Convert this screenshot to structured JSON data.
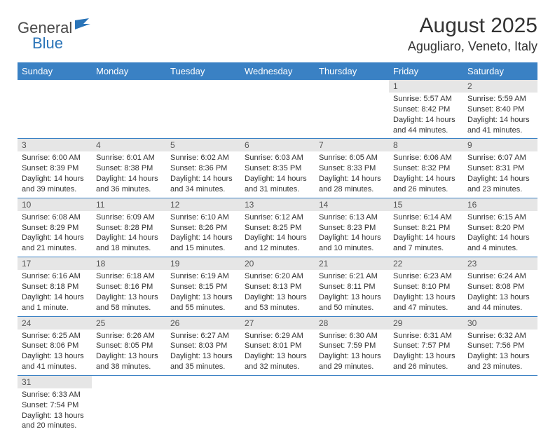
{
  "brand": {
    "part1": "General",
    "part2": "Blue"
  },
  "title": "August 2025",
  "location": "Agugliaro, Veneto, Italy",
  "colors": {
    "header_bg": "#3a81c4",
    "header_fg": "#ffffff",
    "daynum_bg": "#e6e6e6",
    "row_border": "#3a81c4",
    "brand_gray": "#4a4a4a",
    "brand_blue": "#2a74b8"
  },
  "weekdays": [
    "Sunday",
    "Monday",
    "Tuesday",
    "Wednesday",
    "Thursday",
    "Friday",
    "Saturday"
  ],
  "weeks": [
    [
      null,
      null,
      null,
      null,
      null,
      {
        "n": "1",
        "sunrise": "Sunrise: 5:57 AM",
        "sunset": "Sunset: 8:42 PM",
        "daylight": "Daylight: 14 hours and 44 minutes."
      },
      {
        "n": "2",
        "sunrise": "Sunrise: 5:59 AM",
        "sunset": "Sunset: 8:40 PM",
        "daylight": "Daylight: 14 hours and 41 minutes."
      }
    ],
    [
      {
        "n": "3",
        "sunrise": "Sunrise: 6:00 AM",
        "sunset": "Sunset: 8:39 PM",
        "daylight": "Daylight: 14 hours and 39 minutes."
      },
      {
        "n": "4",
        "sunrise": "Sunrise: 6:01 AM",
        "sunset": "Sunset: 8:38 PM",
        "daylight": "Daylight: 14 hours and 36 minutes."
      },
      {
        "n": "5",
        "sunrise": "Sunrise: 6:02 AM",
        "sunset": "Sunset: 8:36 PM",
        "daylight": "Daylight: 14 hours and 34 minutes."
      },
      {
        "n": "6",
        "sunrise": "Sunrise: 6:03 AM",
        "sunset": "Sunset: 8:35 PM",
        "daylight": "Daylight: 14 hours and 31 minutes."
      },
      {
        "n": "7",
        "sunrise": "Sunrise: 6:05 AM",
        "sunset": "Sunset: 8:33 PM",
        "daylight": "Daylight: 14 hours and 28 minutes."
      },
      {
        "n": "8",
        "sunrise": "Sunrise: 6:06 AM",
        "sunset": "Sunset: 8:32 PM",
        "daylight": "Daylight: 14 hours and 26 minutes."
      },
      {
        "n": "9",
        "sunrise": "Sunrise: 6:07 AM",
        "sunset": "Sunset: 8:31 PM",
        "daylight": "Daylight: 14 hours and 23 minutes."
      }
    ],
    [
      {
        "n": "10",
        "sunrise": "Sunrise: 6:08 AM",
        "sunset": "Sunset: 8:29 PM",
        "daylight": "Daylight: 14 hours and 21 minutes."
      },
      {
        "n": "11",
        "sunrise": "Sunrise: 6:09 AM",
        "sunset": "Sunset: 8:28 PM",
        "daylight": "Daylight: 14 hours and 18 minutes."
      },
      {
        "n": "12",
        "sunrise": "Sunrise: 6:10 AM",
        "sunset": "Sunset: 8:26 PM",
        "daylight": "Daylight: 14 hours and 15 minutes."
      },
      {
        "n": "13",
        "sunrise": "Sunrise: 6:12 AM",
        "sunset": "Sunset: 8:25 PM",
        "daylight": "Daylight: 14 hours and 12 minutes."
      },
      {
        "n": "14",
        "sunrise": "Sunrise: 6:13 AM",
        "sunset": "Sunset: 8:23 PM",
        "daylight": "Daylight: 14 hours and 10 minutes."
      },
      {
        "n": "15",
        "sunrise": "Sunrise: 6:14 AM",
        "sunset": "Sunset: 8:21 PM",
        "daylight": "Daylight: 14 hours and 7 minutes."
      },
      {
        "n": "16",
        "sunrise": "Sunrise: 6:15 AM",
        "sunset": "Sunset: 8:20 PM",
        "daylight": "Daylight: 14 hours and 4 minutes."
      }
    ],
    [
      {
        "n": "17",
        "sunrise": "Sunrise: 6:16 AM",
        "sunset": "Sunset: 8:18 PM",
        "daylight": "Daylight: 14 hours and 1 minute."
      },
      {
        "n": "18",
        "sunrise": "Sunrise: 6:18 AM",
        "sunset": "Sunset: 8:16 PM",
        "daylight": "Daylight: 13 hours and 58 minutes."
      },
      {
        "n": "19",
        "sunrise": "Sunrise: 6:19 AM",
        "sunset": "Sunset: 8:15 PM",
        "daylight": "Daylight: 13 hours and 55 minutes."
      },
      {
        "n": "20",
        "sunrise": "Sunrise: 6:20 AM",
        "sunset": "Sunset: 8:13 PM",
        "daylight": "Daylight: 13 hours and 53 minutes."
      },
      {
        "n": "21",
        "sunrise": "Sunrise: 6:21 AM",
        "sunset": "Sunset: 8:11 PM",
        "daylight": "Daylight: 13 hours and 50 minutes."
      },
      {
        "n": "22",
        "sunrise": "Sunrise: 6:23 AM",
        "sunset": "Sunset: 8:10 PM",
        "daylight": "Daylight: 13 hours and 47 minutes."
      },
      {
        "n": "23",
        "sunrise": "Sunrise: 6:24 AM",
        "sunset": "Sunset: 8:08 PM",
        "daylight": "Daylight: 13 hours and 44 minutes."
      }
    ],
    [
      {
        "n": "24",
        "sunrise": "Sunrise: 6:25 AM",
        "sunset": "Sunset: 8:06 PM",
        "daylight": "Daylight: 13 hours and 41 minutes."
      },
      {
        "n": "25",
        "sunrise": "Sunrise: 6:26 AM",
        "sunset": "Sunset: 8:05 PM",
        "daylight": "Daylight: 13 hours and 38 minutes."
      },
      {
        "n": "26",
        "sunrise": "Sunrise: 6:27 AM",
        "sunset": "Sunset: 8:03 PM",
        "daylight": "Daylight: 13 hours and 35 minutes."
      },
      {
        "n": "27",
        "sunrise": "Sunrise: 6:29 AM",
        "sunset": "Sunset: 8:01 PM",
        "daylight": "Daylight: 13 hours and 32 minutes."
      },
      {
        "n": "28",
        "sunrise": "Sunrise: 6:30 AM",
        "sunset": "Sunset: 7:59 PM",
        "daylight": "Daylight: 13 hours and 29 minutes."
      },
      {
        "n": "29",
        "sunrise": "Sunrise: 6:31 AM",
        "sunset": "Sunset: 7:57 PM",
        "daylight": "Daylight: 13 hours and 26 minutes."
      },
      {
        "n": "30",
        "sunrise": "Sunrise: 6:32 AM",
        "sunset": "Sunset: 7:56 PM",
        "daylight": "Daylight: 13 hours and 23 minutes."
      }
    ],
    [
      {
        "n": "31",
        "sunrise": "Sunrise: 6:33 AM",
        "sunset": "Sunset: 7:54 PM",
        "daylight": "Daylight: 13 hours and 20 minutes."
      },
      null,
      null,
      null,
      null,
      null,
      null
    ]
  ]
}
